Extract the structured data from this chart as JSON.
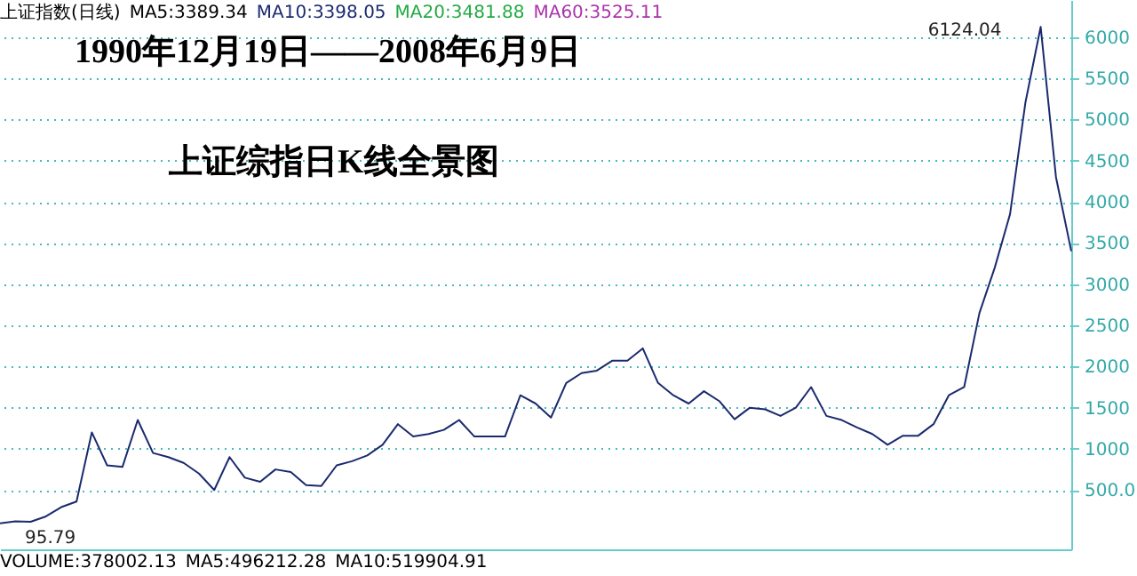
{
  "chart_data": {
    "type": "line",
    "title": "1990年12月19日——2008年6月9日",
    "subtitle": "上证综指日K线全景图",
    "annotations": [
      "上证指数(日线)",
      "MA5:3389.34",
      "MA10:3398.05",
      "MA20:3481.88",
      "MA60:3525.11",
      "VOLUME:378002.13",
      "MA5:496212.28",
      "MA10:519904.91",
      "6124.04",
      "95.79"
    ],
    "categories": [
      null,
      null,
      null,
      null,
      null,
      null,
      null,
      null,
      null,
      null,
      null,
      null,
      null,
      null,
      null,
      null,
      null,
      null,
      null,
      null,
      null,
      null,
      null,
      null,
      null,
      null,
      null,
      null,
      null,
      null,
      null,
      null,
      null,
      null,
      null,
      null,
      null,
      null,
      null,
      null,
      null,
      null,
      null,
      null,
      null,
      null,
      null,
      null,
      null,
      null,
      null,
      null,
      null,
      null,
      null,
      null,
      null,
      null,
      null,
      null,
      null,
      null,
      null,
      null,
      null,
      null,
      null,
      null,
      null,
      null,
      null
    ],
    "series": [
      {
        "color": "#1a2a6e",
        "values": [
          95.79,
          120,
          115,
          180,
          292,
          360,
          1200,
          800,
          780,
          1350,
          950,
          900,
          830,
          700,
          500,
          900,
          650,
          600,
          750,
          720,
          560,
          550,
          800,
          850,
          920,
          1050,
          1300,
          1150,
          1180,
          1230,
          1350,
          1150,
          1150,
          1150,
          1650,
          1550,
          1380,
          1800,
          1920,
          1950,
          2070,
          2070,
          2220,
          1800,
          1650,
          1550,
          1700,
          1580,
          1360,
          1500,
          1480,
          1400,
          1500,
          1750,
          1400,
          1350,
          1260,
          1180,
          1050,
          1160,
          1160,
          1300,
          1650,
          1750,
          2650,
          3200,
          3850,
          5200,
          6124.04,
          4300,
          3400
        ]
      }
    ],
    "ylim": [
      -220,
      6450
    ],
    "yticks": [
      {
        "value": 500,
        "label": "500.0"
      },
      1000,
      1500,
      2000,
      2500,
      3000,
      3500,
      4000,
      4500,
      5000,
      5500,
      6000
    ],
    "grid": "y",
    "tick_labels": "y",
    "marker": "none",
    "line_style": "solid"
  }
}
